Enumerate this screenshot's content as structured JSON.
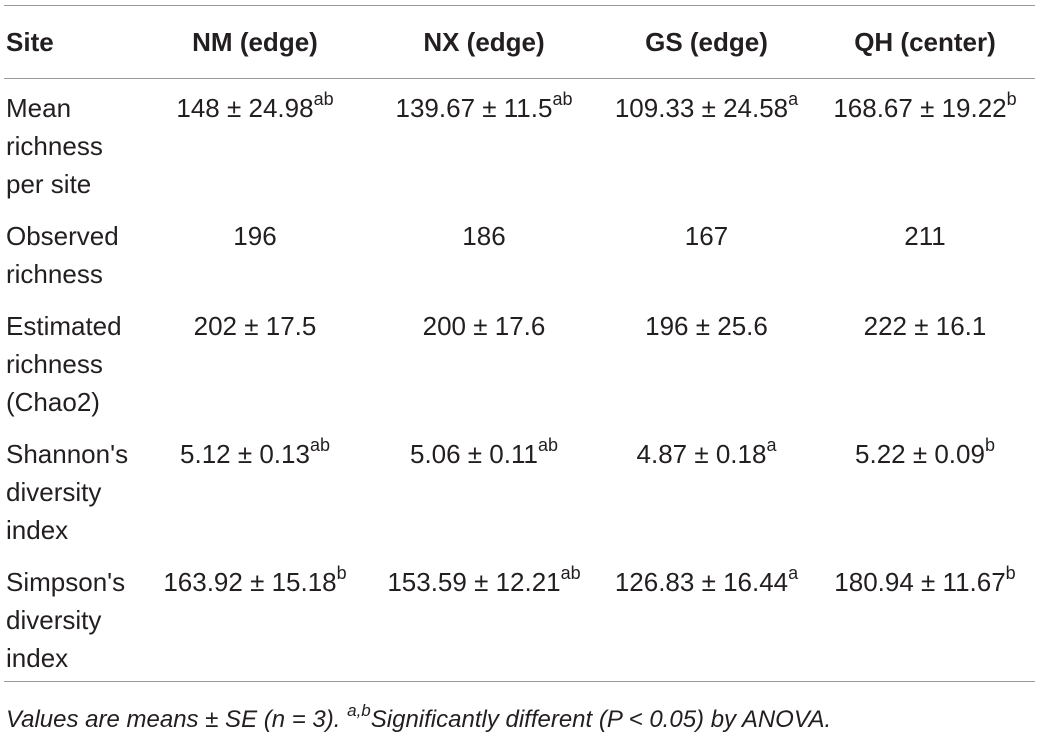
{
  "table": {
    "header": [
      "Site",
      "NM (edge)",
      "NX (edge)",
      "GS (edge)",
      "QH (center)"
    ],
    "rows": [
      {
        "label": "Mean richness per site",
        "cells": [
          {
            "text": "148 ± 24.98",
            "sup": "ab"
          },
          {
            "text": "139.67 ± 11.5",
            "sup": "ab"
          },
          {
            "text": "109.33 ± 24.58",
            "sup": "a"
          },
          {
            "text": "168.67 ± 19.22",
            "sup": "b"
          }
        ]
      },
      {
        "label": "Observed richness",
        "cells": [
          {
            "text": "196"
          },
          {
            "text": "186"
          },
          {
            "text": "167"
          },
          {
            "text": "211"
          }
        ]
      },
      {
        "label": "Estimated richness (Chao2)",
        "cells": [
          {
            "text": "202 ± 17.5"
          },
          {
            "text": "200 ± 17.6"
          },
          {
            "text": "196 ± 25.6"
          },
          {
            "text": "222 ± 16.1"
          }
        ]
      },
      {
        "label": "Shannon's diversity index",
        "cells": [
          {
            "text": "5.12 ± 0.13",
            "sup": "ab"
          },
          {
            "text": "5.06 ± 0.11",
            "sup": "ab"
          },
          {
            "text": "4.87 ± 0.18",
            "sup": "a"
          },
          {
            "text": "5.22 ± 0.09",
            "sup": "b"
          }
        ]
      },
      {
        "label": "Simpson's diversity index",
        "cells": [
          {
            "text": "163.92 ± 15.18",
            "sup": "b"
          },
          {
            "text": "153.59 ± 12.21",
            "sup": "ab"
          },
          {
            "text": "126.83 ± 16.44",
            "sup": "a"
          },
          {
            "text": "180.94 ± 11.67",
            "sup": "b"
          }
        ]
      }
    ]
  },
  "footnote": {
    "text1": "Values are means ± SE (n = 3). ",
    "sup": "a,b",
    "text2": "Significantly different (P < 0.05) by ANOVA."
  }
}
